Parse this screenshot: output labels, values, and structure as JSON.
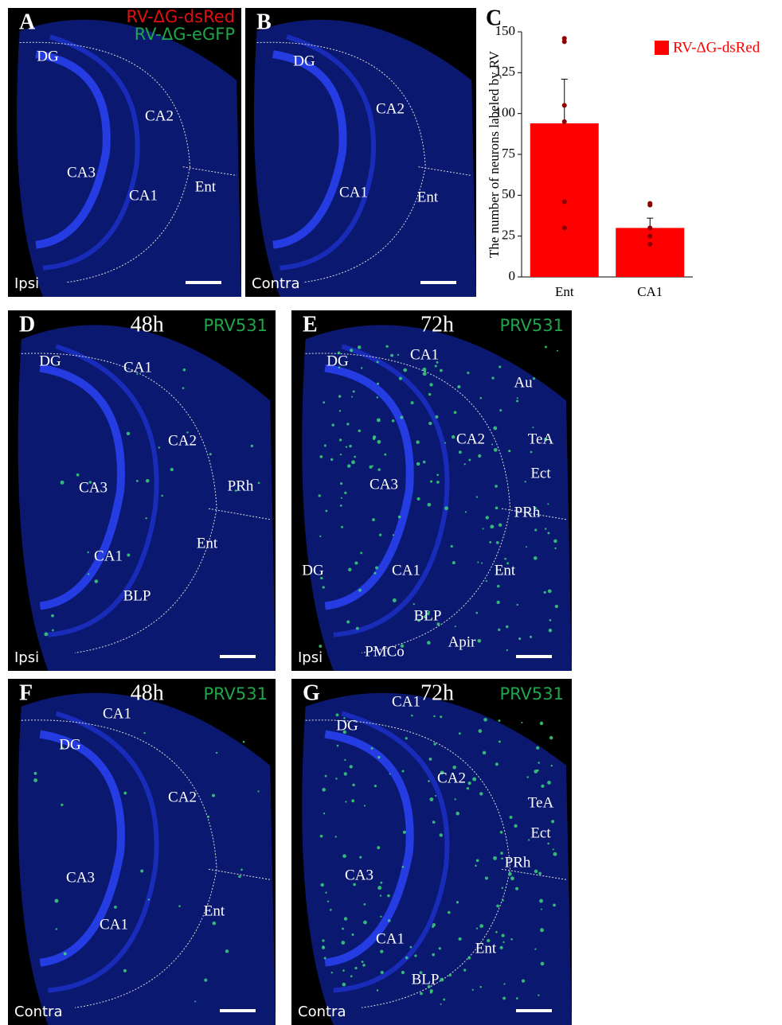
{
  "panels": [
    {
      "letter": "A",
      "legend": [
        "RV-ΔG-dsRed",
        "RV-ΔG-eGFP"
      ],
      "regions": [
        "DG",
        "CA2",
        "CA3",
        "CA1",
        "Ent"
      ],
      "side": "Ipsi"
    },
    {
      "letter": "B",
      "regions": [
        "DG",
        "CA2",
        "CA1",
        "Ent"
      ],
      "side": "Contra"
    },
    {
      "letter": "D",
      "time": "48h",
      "marker": "PRV531",
      "regions": [
        "DG",
        "CA1",
        "CA2",
        "CA3",
        "PRh",
        "Ent",
        "CA1",
        "BLP"
      ],
      "side": "Ipsi"
    },
    {
      "letter": "E",
      "time": "72h",
      "marker": "PRV531",
      "regions": [
        "CA1",
        "DG",
        "Au",
        "CA2",
        "TeA",
        "Ect",
        "CA3",
        "PRh",
        "DG",
        "CA1",
        "Ent",
        "BLP",
        "Apir",
        "PMCo"
      ],
      "side": "Ipsi"
    },
    {
      "letter": "F",
      "time": "48h",
      "marker": "PRV531",
      "regions": [
        "CA1",
        "DG",
        "CA2",
        "CA3",
        "Ent",
        "CA1"
      ],
      "side": "Contra"
    },
    {
      "letter": "G",
      "time": "72h",
      "marker": "PRV531",
      "regions": [
        "CA1",
        "DG",
        "CA2",
        "TeA",
        "Ect",
        "PRh",
        "CA3",
        "Ent",
        "CA1",
        "BLP"
      ],
      "side": "Contra"
    }
  ],
  "chart_data": {
    "type": "bar",
    "letter": "C",
    "ylabel": "The number of neurons labeled by RV",
    "categories": [
      "Ent",
      "CA1"
    ],
    "series": [
      {
        "name": "RV-ΔG-dsRed",
        "color": "#ff0000",
        "values": [
          94,
          30
        ],
        "errors": [
          27,
          6
        ],
        "points": [
          [
            146,
            144,
            105,
            95,
            46,
            30
          ],
          [
            45,
            44,
            30,
            25,
            20
          ]
        ]
      }
    ],
    "ylim": [
      0,
      150
    ],
    "yticks": [
      0,
      25,
      50,
      75,
      100,
      125,
      150
    ]
  }
}
